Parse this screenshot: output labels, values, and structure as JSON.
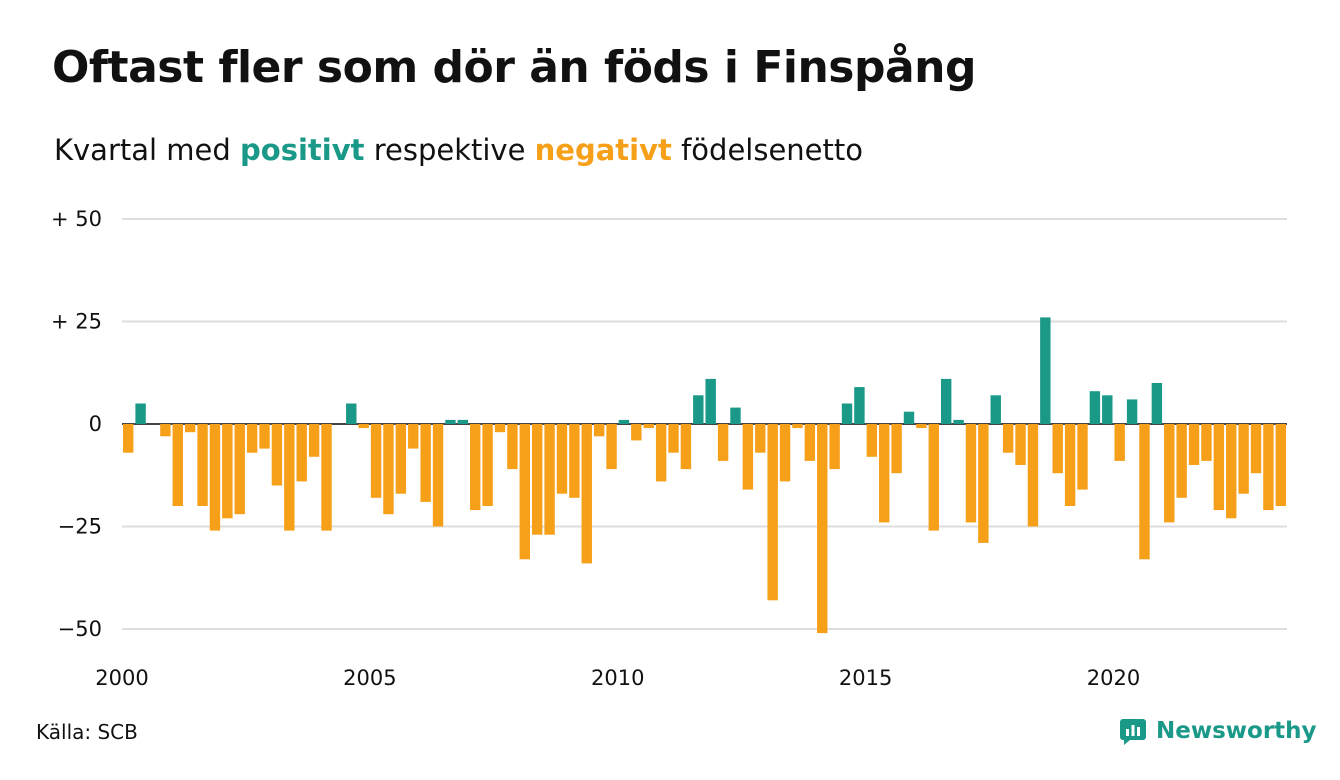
{
  "title": "Oftast fler som dör än föds i Finspång",
  "subtitle": {
    "prefix": "Kvartal med ",
    "positive_word": "positivt",
    "middle": " respektive ",
    "negative_word": "negativt",
    "suffix": " födelsenetto"
  },
  "source": "Källa: SCB",
  "brand": {
    "name": "Newsworthy",
    "icon": "newsworthy-logo-icon"
  },
  "colors": {
    "positive": "#1a9988",
    "negative": "#f6a01a",
    "brand": "#1a9988",
    "grid": "#dddddd",
    "text": "#111111"
  },
  "chart_data": {
    "type": "bar",
    "title": "Oftast fler som dör än föds i Finspång",
    "subtitle": "Kvartal med positivt respektive negativt födelsenetto",
    "xlabel": "",
    "ylabel": "",
    "ylim": [
      -50,
      50
    ],
    "xlim": [
      2000,
      2023.5
    ],
    "yticks": [
      {
        "value": 50,
        "label": "+ 50"
      },
      {
        "value": 25,
        "label": "+ 25"
      },
      {
        "value": 0,
        "label": "0"
      },
      {
        "value": -25,
        "label": "−25"
      },
      {
        "value": -50,
        "label": "−50"
      }
    ],
    "xticks": [
      {
        "value": 2000,
        "label": "2000"
      },
      {
        "value": 2005,
        "label": "2005"
      },
      {
        "value": 2010,
        "label": "2010"
      },
      {
        "value": 2015,
        "label": "2015"
      },
      {
        "value": 2020,
        "label": "2020"
      }
    ],
    "grid": true,
    "start_year": 2000,
    "quarters_per_year": 4,
    "series": [
      {
        "values": [
          -7,
          5,
          0,
          -3,
          -20,
          -2,
          -20,
          -26,
          -23,
          -22,
          -7,
          -6,
          -15,
          -26,
          -14,
          -8,
          -26,
          0,
          5,
          -1,
          -18,
          -22,
          -17,
          -6,
          -19,
          -25,
          1,
          1,
          -21,
          -20,
          -2,
          -11,
          -33,
          -27,
          -27,
          -17,
          -18,
          -34,
          -3,
          -11,
          1,
          -4,
          -1,
          -14,
          -7,
          -11,
          7,
          11,
          -9,
          4,
          -16,
          -7,
          -43,
          -14,
          -1,
          -9,
          -51,
          -11,
          5,
          9,
          -8,
          -24,
          -12,
          3,
          -1,
          -26,
          11,
          1,
          -24,
          -29,
          7,
          -7,
          -10,
          -25,
          26,
          -12,
          -20,
          -16,
          8,
          7,
          -9,
          6,
          -33,
          10,
          -24,
          -18,
          -10,
          -9,
          -21,
          -23,
          -17,
          -12,
          -21,
          -20
        ]
      }
    ]
  }
}
